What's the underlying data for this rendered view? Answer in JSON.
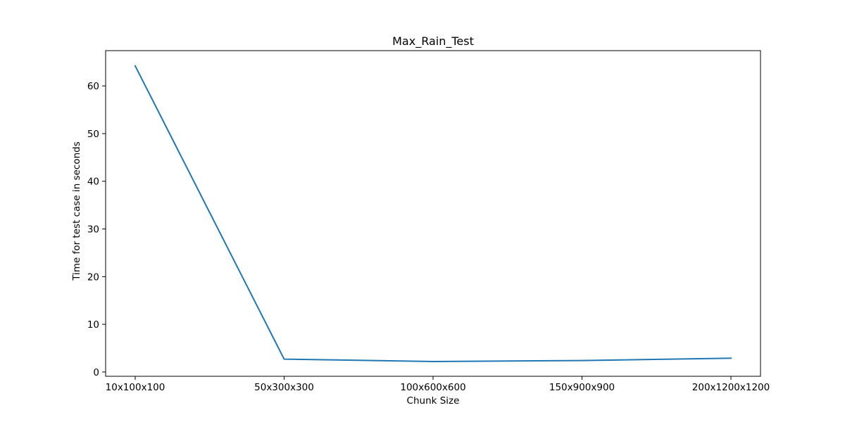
{
  "chart_data": {
    "type": "line",
    "title": "Max_Rain_Test",
    "xlabel": "Chunk Size",
    "ylabel": "Time for test case in seconds",
    "categories": [
      "10x100x100",
      "50x300x300",
      "100x600x600",
      "150x900x900",
      "200x1200x1200"
    ],
    "series": [
      {
        "values": [
          64.2,
          2.7,
          2.2,
          2.4,
          2.9
        ],
        "color": "#1f77b4"
      }
    ],
    "ylim": [
      -0.9,
      67.4
    ],
    "yticks": [
      0,
      10,
      20,
      30,
      40,
      50,
      60
    ],
    "grid": false,
    "legend": "none"
  }
}
